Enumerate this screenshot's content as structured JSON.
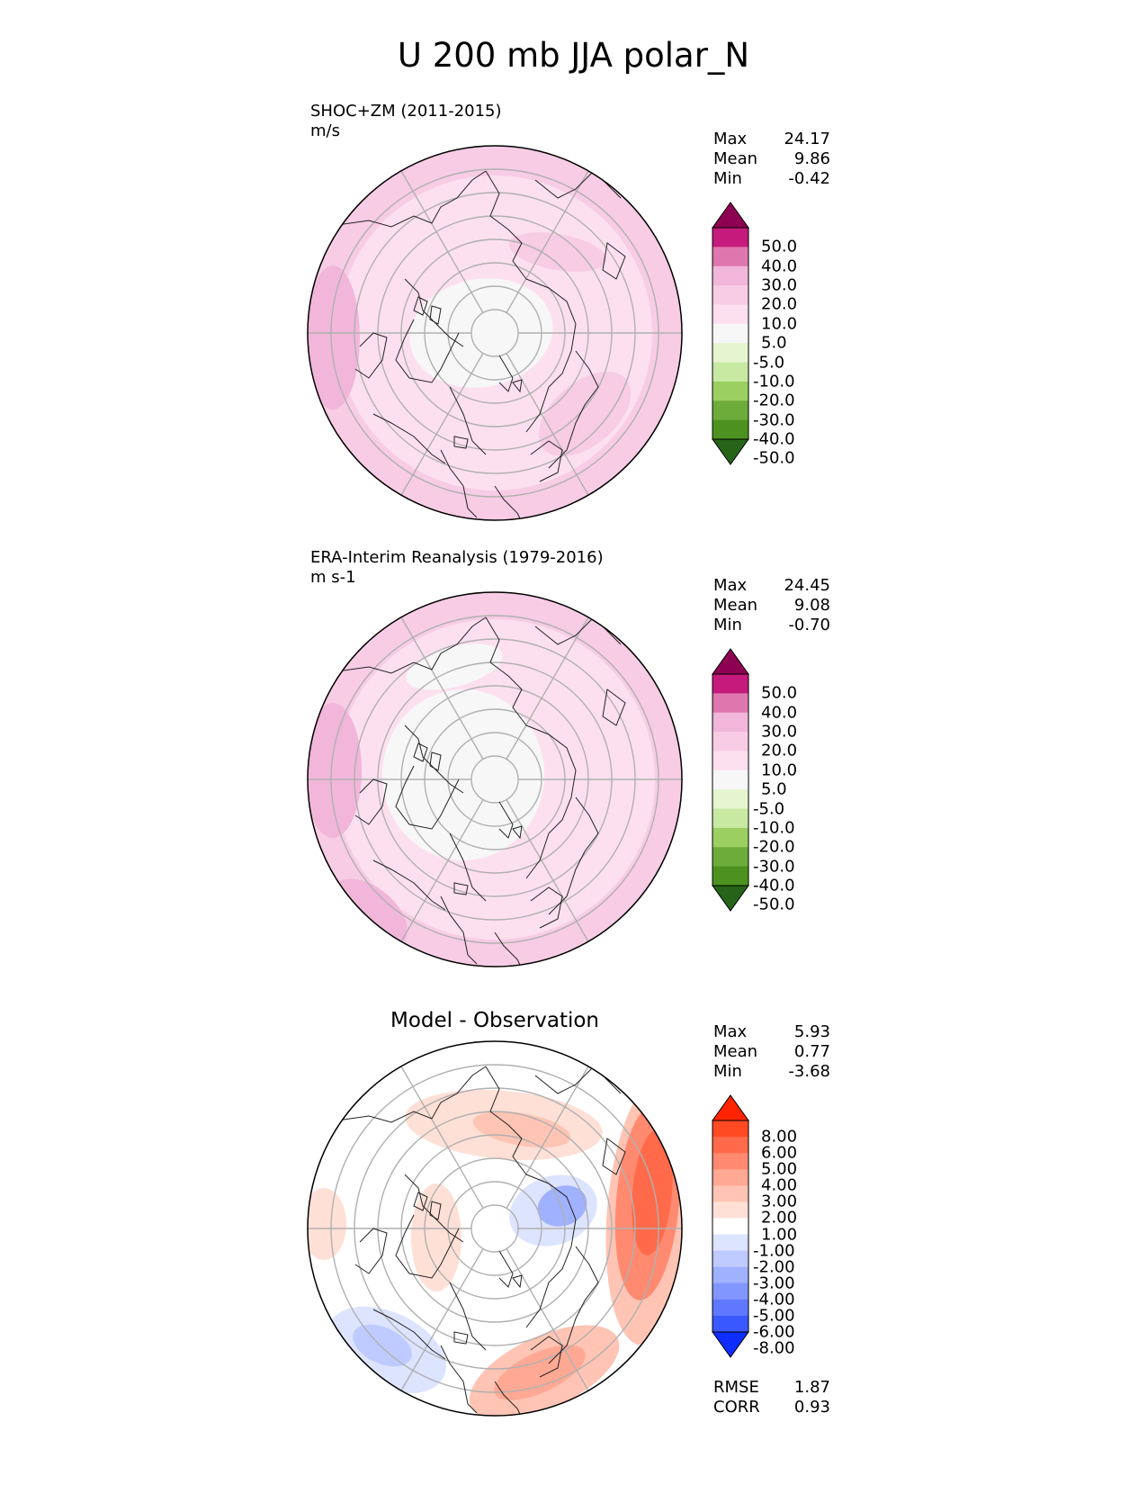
{
  "figure": {
    "title": "U 200 mb JJA polar_N"
  },
  "panels": [
    {
      "title_line1": "SHOC+ZM (2011-2015)",
      "title_line2": "m/s",
      "stats": {
        "max_label": "Max",
        "max": "24.17",
        "mean_label": "Mean",
        "mean": "9.86",
        "min_label": "Min",
        "min": "-0.42"
      },
      "colorbar": {
        "labels": [
          "50.0",
          "40.0",
          "30.0",
          "20.0",
          "10.0",
          "5.0",
          "-5.0",
          "-10.0",
          "-20.0",
          "-30.0",
          "-40.0",
          "-50.0"
        ],
        "colors": [
          "#8e0152",
          "#c51b7d",
          "#de77ae",
          "#f1b6da",
          "#f7cce4",
          "#fde0ef",
          "#f7f7f7",
          "#e6f5d0",
          "#c7e9a2",
          "#9ccf62",
          "#6dab3a",
          "#4d9221",
          "#276419"
        ]
      }
    },
    {
      "title_line1": "ERA-Interim Reanalysis (1979-2016)",
      "title_line2": "m s-1",
      "stats": {
        "max_label": "Max",
        "max": "24.45",
        "mean_label": "Mean",
        "mean": "9.08",
        "min_label": "Min",
        "min": "-0.70"
      },
      "colorbar": {
        "labels": [
          "50.0",
          "40.0",
          "30.0",
          "20.0",
          "10.0",
          "5.0",
          "-5.0",
          "-10.0",
          "-20.0",
          "-30.0",
          "-40.0",
          "-50.0"
        ],
        "colors": [
          "#8e0152",
          "#c51b7d",
          "#de77ae",
          "#f1b6da",
          "#f7cce4",
          "#fde0ef",
          "#f7f7f7",
          "#e6f5d0",
          "#c7e9a2",
          "#9ccf62",
          "#6dab3a",
          "#4d9221",
          "#276419"
        ]
      }
    },
    {
      "title_center": "Model - Observation",
      "stats": {
        "max_label": "Max",
        "max": "5.93",
        "mean_label": "Mean",
        "mean": "0.77",
        "min_label": "Min",
        "min": "-3.68"
      },
      "colorbar": {
        "labels": [
          "8.00",
          "6.00",
          "5.00",
          "4.00",
          "3.00",
          "2.00",
          "1.00",
          "-1.00",
          "-2.00",
          "-3.00",
          "-4.00",
          "-5.00",
          "-6.00",
          "-8.00"
        ],
        "colors": [
          "#ff2400",
          "#ff4a24",
          "#ff6a4a",
          "#ff8a70",
          "#ffa893",
          "#ffc4b4",
          "#ffe0d6",
          "#ffffff",
          "#dde4ff",
          "#bfcbff",
          "#a0b1ff",
          "#8296ff",
          "#5f78ff",
          "#3a58ff",
          "#0d2eff"
        ]
      },
      "metrics": {
        "rmse_label": "RMSE",
        "rmse": "1.87",
        "corr_label": "CORR",
        "corr": "0.93"
      }
    }
  ]
}
